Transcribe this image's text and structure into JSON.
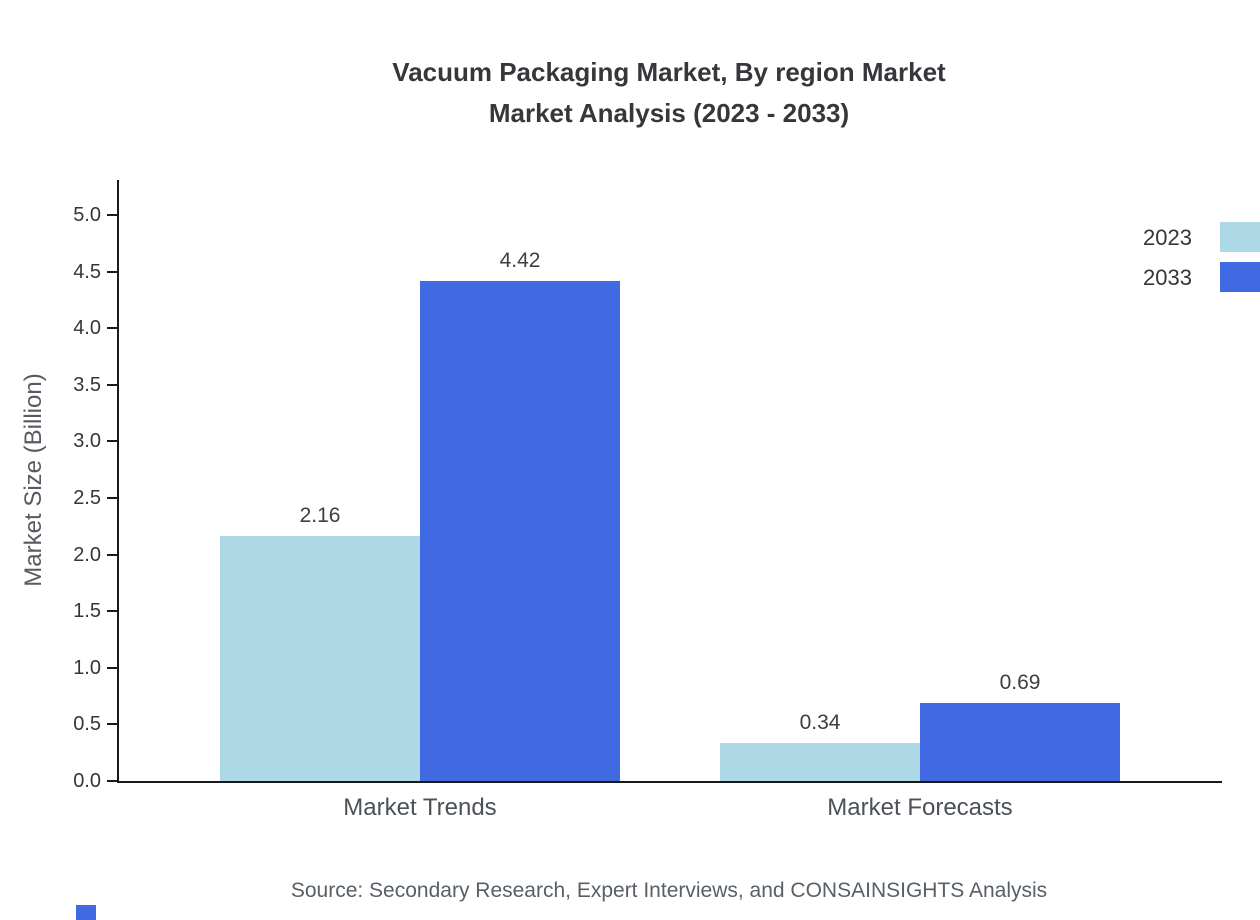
{
  "title_line1": "Vacuum Packaging Market, By region Market",
  "title_line2": "Market Analysis (2023 - 2033)",
  "source": "Source: Secondary Research, Expert Interviews, and CONSAINSIGHTS Analysis",
  "colors": {
    "accent_blue": "#4169e1",
    "light_blue": "#add8e6"
  },
  "chart_data": {
    "type": "bar",
    "title": "Vacuum Packaging Market, By region Market Market Analysis (2023 - 2033)",
    "categories": [
      "Market Trends",
      "Market Forecasts"
    ],
    "series": [
      {
        "name": "2023",
        "color": "#add8e6",
        "values": [
          2.16,
          0.34
        ]
      },
      {
        "name": "2033",
        "color": "#4169e1",
        "values": [
          4.42,
          0.69
        ]
      }
    ],
    "xlabel": "",
    "ylabel": "Market Size (Billion)",
    "ylim": [
      0,
      5
    ],
    "yticks": [
      "0.0",
      "0.5",
      "1.0",
      "1.5",
      "2.0",
      "2.5",
      "3.0",
      "3.5",
      "4.0",
      "4.5",
      "5.0"
    ],
    "grid": false,
    "legend_position": "top-right"
  }
}
